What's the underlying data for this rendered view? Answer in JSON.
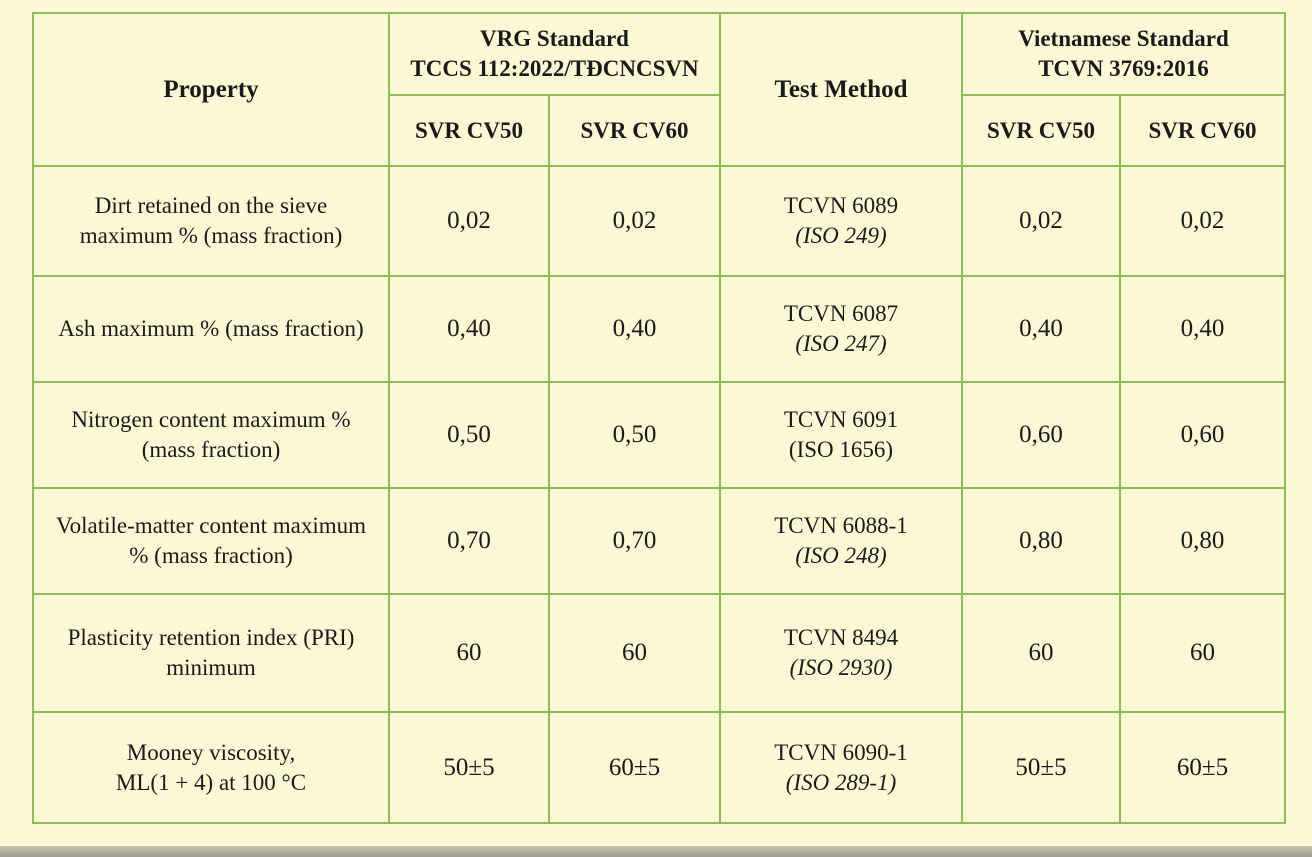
{
  "header": {
    "property": "Property",
    "vrg": [
      "VRG Standard",
      "TCCS 112:2022/TĐCNCSVN"
    ],
    "method": "Test Method",
    "vn": [
      "Vietnamese Standard",
      "TCVN 3769:2016"
    ],
    "grades": [
      "SVR CV50",
      "SVR CV60",
      "SVR CV50",
      "SVR CV60"
    ]
  },
  "rows": [
    {
      "property": [
        "Dirt retained on the sieve",
        "maximum % (mass fraction)"
      ],
      "vrg": [
        "0,02",
        "0,02"
      ],
      "method": [
        "TCVN 6089",
        "(ISO 249)"
      ],
      "iso_italic": true,
      "vn": [
        "0,02",
        "0,02"
      ]
    },
    {
      "property": [
        "Ash maximum % (mass fraction)"
      ],
      "vrg": [
        "0,40",
        "0,40"
      ],
      "method": [
        "TCVN 6087",
        "(ISO 247)"
      ],
      "iso_italic": true,
      "vn": [
        "0,40",
        "0,40"
      ]
    },
    {
      "property": [
        "Nitrogen content maximum %",
        "(mass fraction)"
      ],
      "vrg": [
        "0,50",
        "0,50"
      ],
      "method": [
        "TCVN 6091",
        "(ISO 1656)"
      ],
      "iso_italic": false,
      "vn": [
        "0,60",
        "0,60"
      ]
    },
    {
      "property": [
        "Volatile-matter content maximum",
        "% (mass fraction)"
      ],
      "vrg": [
        "0,70",
        "0,70"
      ],
      "method": [
        "TCVN 6088-1",
        "(ISO 248)"
      ],
      "iso_italic": true,
      "vn": [
        "0,80",
        "0,80"
      ]
    },
    {
      "property": [
        "Plasticity retention index (PRI)",
        "minimum"
      ],
      "vrg": [
        "60",
        "60"
      ],
      "method": [
        "TCVN 8494",
        "(ISO 2930)"
      ],
      "iso_italic": true,
      "vn": [
        "60",
        "60"
      ]
    },
    {
      "property": [
        "Mooney viscosity,",
        "ML(1 + 4) at 100 °C"
      ],
      "vrg": [
        "50±5",
        "60±5"
      ],
      "method": [
        "TCVN 6090-1",
        "(ISO 289-1)"
      ],
      "iso_italic": true,
      "vn": [
        "50±5",
        "60±5"
      ]
    }
  ]
}
